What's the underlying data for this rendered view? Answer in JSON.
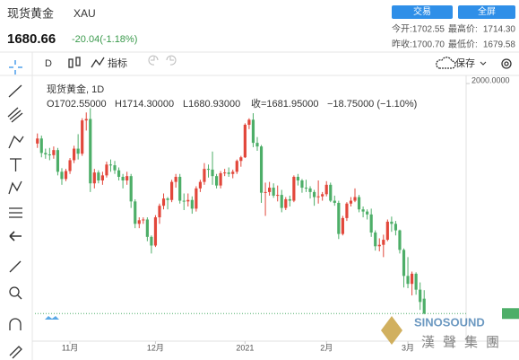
{
  "header": {
    "name": "现货黄金",
    "code": "XAU",
    "price": "1680.66",
    "change": "-20.04(-1.18%)",
    "buttons": [
      "交易",
      "全屏"
    ],
    "stats": [
      [
        "今开:",
        "1702.55",
        "最高价:",
        "1714.30"
      ],
      [
        "昨收:",
        "1700.70",
        "最低价:",
        "1679.58"
      ]
    ]
  },
  "toolbar": {
    "interval": "D",
    "indicators": "指标",
    "save": "保存"
  },
  "watermark": {
    "brand": "SINOSOUND",
    "name": "漢聲集團"
  },
  "chart_data": {
    "type": "candlestick",
    "title": "现货黄金, 1D",
    "legend": [
      "O1702.55000",
      "H1714.30000",
      "L1680.93000",
      "收=1681.95000",
      "−18.75000 (−1.10%)"
    ],
    "up_color": "#e2473b",
    "down_color": "#4dae68",
    "ylim": [
      1650,
      2010
    ],
    "yticks": [
      {
        "value": 2000,
        "label": "2000.0000"
      }
    ],
    "xlim": [
      -0.6,
      105.3
    ],
    "xticks": [
      {
        "value": 8,
        "label": "11月"
      },
      {
        "value": 29,
        "label": "12月"
      },
      {
        "value": 51,
        "label": "2021"
      },
      {
        "value": 71,
        "label": "2月"
      },
      {
        "value": 91,
        "label": "3月"
      }
    ],
    "ohlc": [
      [
        1917,
        1931,
        1911,
        1924
      ],
      [
        1924,
        1928,
        1898,
        1904
      ],
      [
        1904,
        1910,
        1896,
        1902
      ],
      [
        1902,
        1911,
        1894,
        1901
      ],
      [
        1901,
        1913,
        1896,
        1908
      ],
      [
        1908,
        1911,
        1873,
        1878
      ],
      [
        1878,
        1883,
        1860,
        1868
      ],
      [
        1868,
        1882,
        1865,
        1879
      ],
      [
        1879,
        1897,
        1875,
        1894
      ],
      [
        1894,
        1914,
        1890,
        1910
      ],
      [
        1910,
        1930,
        1895,
        1903
      ],
      [
        1903,
        1952,
        1900,
        1949
      ],
      [
        1949,
        1960,
        1935,
        1951
      ],
      [
        1951,
        1966,
        1850,
        1862
      ],
      [
        1862,
        1882,
        1855,
        1877
      ],
      [
        1877,
        1880,
        1862,
        1866
      ],
      [
        1866,
        1878,
        1860,
        1873
      ],
      [
        1873,
        1892,
        1870,
        1888
      ],
      [
        1888,
        1895,
        1878,
        1887
      ],
      [
        1887,
        1893,
        1875,
        1880
      ],
      [
        1880,
        1884,
        1866,
        1871
      ],
      [
        1871,
        1875,
        1855,
        1866
      ],
      [
        1866,
        1878,
        1860,
        1872
      ],
      [
        1872,
        1875,
        1828,
        1837
      ],
      [
        1837,
        1840,
        1800,
        1806
      ],
      [
        1806,
        1815,
        1800,
        1811
      ],
      [
        1811,
        1815,
        1806,
        1812
      ],
      [
        1812,
        1815,
        1782,
        1788
      ],
      [
        1788,
        1790,
        1765,
        1776
      ],
      [
        1776,
        1818,
        1774,
        1815
      ],
      [
        1815,
        1834,
        1806,
        1831
      ],
      [
        1831,
        1848,
        1826,
        1841
      ],
      [
        1841,
        1843,
        1826,
        1839
      ],
      [
        1839,
        1867,
        1836,
        1864
      ],
      [
        1864,
        1875,
        1856,
        1871
      ],
      [
        1871,
        1875,
        1834,
        1838
      ],
      [
        1838,
        1848,
        1825,
        1837
      ],
      [
        1837,
        1848,
        1830,
        1839
      ],
      [
        1839,
        1844,
        1820,
        1827
      ],
      [
        1827,
        1858,
        1823,
        1855
      ],
      [
        1855,
        1867,
        1850,
        1864
      ],
      [
        1864,
        1890,
        1860,
        1882
      ],
      [
        1882,
        1888,
        1870,
        1881
      ],
      [
        1881,
        1906,
        1860,
        1872
      ],
      [
        1872,
        1875,
        1855,
        1859
      ],
      [
        1859,
        1879,
        1855,
        1876
      ],
      [
        1876,
        1882,
        1872,
        1877
      ],
      [
        1877,
        1884,
        1871,
        1875
      ],
      [
        1875,
        1881,
        1869,
        1878
      ],
      [
        1878,
        1895,
        1875,
        1893
      ],
      [
        1893,
        1900,
        1885,
        1898
      ],
      [
        1898,
        1945,
        1897,
        1943
      ],
      [
        1943,
        1952,
        1937,
        1950
      ],
      [
        1950,
        1959,
        1912,
        1918
      ],
      [
        1918,
        1926,
        1907,
        1913
      ],
      [
        1913,
        1915,
        1835,
        1849
      ],
      [
        1849,
        1863,
        1817,
        1850
      ],
      [
        1850,
        1864,
        1845,
        1856
      ],
      [
        1856,
        1862,
        1842,
        1845
      ],
      [
        1845,
        1859,
        1837,
        1846
      ],
      [
        1846,
        1853,
        1822,
        1828
      ],
      [
        1828,
        1843,
        1825,
        1840
      ],
      [
        1840,
        1845,
        1830,
        1838
      ],
      [
        1838,
        1873,
        1836,
        1871
      ],
      [
        1871,
        1875,
        1859,
        1866
      ],
      [
        1866,
        1868,
        1849,
        1856
      ],
      [
        1856,
        1867,
        1850,
        1855
      ],
      [
        1855,
        1858,
        1841,
        1850
      ],
      [
        1850,
        1853,
        1831,
        1843
      ],
      [
        1843,
        1866,
        1834,
        1844
      ],
      [
        1844,
        1850,
        1838,
        1847
      ],
      [
        1847,
        1865,
        1844,
        1860
      ],
      [
        1860,
        1863,
        1836,
        1838
      ],
      [
        1838,
        1845,
        1831,
        1835
      ],
      [
        1835,
        1838,
        1785,
        1792
      ],
      [
        1792,
        1817,
        1790,
        1814
      ],
      [
        1814,
        1836,
        1810,
        1834
      ],
      [
        1834,
        1843,
        1830,
        1838
      ],
      [
        1838,
        1855,
        1836,
        1843
      ],
      [
        1843,
        1846,
        1822,
        1826
      ],
      [
        1826,
        1830,
        1815,
        1823
      ],
      [
        1823,
        1826,
        1812,
        1819
      ],
      [
        1819,
        1827,
        1788,
        1794
      ],
      [
        1794,
        1797,
        1769,
        1775
      ],
      [
        1775,
        1786,
        1768,
        1777
      ],
      [
        1777,
        1791,
        1760,
        1784
      ],
      [
        1784,
        1812,
        1782,
        1809
      ],
      [
        1809,
        1816,
        1795,
        1806
      ],
      [
        1806,
        1810,
        1790,
        1797
      ],
      [
        1797,
        1798,
        1765,
        1770
      ],
      [
        1770,
        1772,
        1718,
        1734
      ],
      [
        1734,
        1760,
        1717,
        1723
      ],
      [
        1723,
        1740,
        1707,
        1737
      ],
      [
        1737,
        1739,
        1708,
        1715
      ],
      [
        1715,
        1725,
        1687,
        1698
      ],
      [
        1702.55,
        1714.3,
        1680.93,
        1681.95
      ]
    ]
  }
}
